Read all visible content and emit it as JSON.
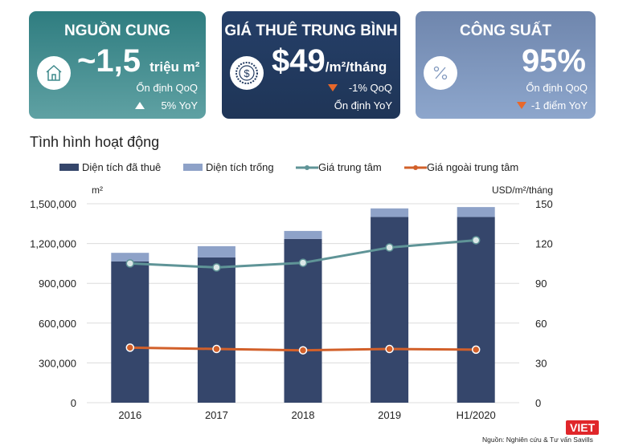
{
  "cards": [
    {
      "title": "NGUỒN CUNG",
      "value": "~1,5",
      "unit": "triệu m²",
      "line1": "Ổn định QoQ",
      "line2": "5% YoY",
      "icon": "house-icon",
      "color": "#3f8a8c"
    },
    {
      "title": "GIÁ THUÊ TRUNG BÌNH",
      "value": "$49",
      "unit": "/m²/tháng",
      "line1": "-1% QoQ",
      "line2": "Ổn định YoY",
      "icon": "dollar-coin-icon",
      "color": "#223a60"
    },
    {
      "title": "CÔNG SUẤT",
      "value": "95%",
      "line1": "Ổn định QoQ",
      "line2": "-1 điểm YoY",
      "icon": "percent-icon",
      "color": "#7f97bd"
    }
  ],
  "section_title": "Tình hình hoạt động",
  "chart_data": {
    "type": "bar",
    "categories": [
      "2016",
      "2017",
      "2018",
      "2019",
      "H1/2020"
    ],
    "series": [
      {
        "name": "Diện tích đã thuê",
        "kind": "stacked-bar",
        "axis": "left",
        "color": "#35466b",
        "values": [
          1065000,
          1095000,
          1235000,
          1400000,
          1400000
        ]
      },
      {
        "name": "Diện tích trống",
        "kind": "stacked-bar",
        "axis": "left",
        "color": "#8ea2c8",
        "values": [
          65000,
          85000,
          60000,
          65000,
          75000
        ]
      },
      {
        "name": "Giá trung tâm",
        "kind": "line",
        "axis": "right",
        "color": "#5f9497",
        "values": [
          105,
          102,
          105.5,
          117,
          122.5
        ]
      },
      {
        "name": "Giá ngoài trung tâm",
        "kind": "line",
        "axis": "right",
        "color": "#d2602a",
        "values": [
          41.5,
          40.5,
          39.5,
          40.5,
          40
        ]
      }
    ],
    "ylabel": "m²",
    "y2label": "USD/m²/tháng",
    "ylim": [
      0,
      1500000
    ],
    "y2lim": [
      0,
      150
    ],
    "yticks": [
      "0",
      "300,000",
      "600,000",
      "900,000",
      "1,200,000",
      "1,500,000"
    ],
    "y2ticks": [
      "0",
      "30",
      "60",
      "90",
      "120",
      "150"
    ],
    "grid": true,
    "legend": "top"
  },
  "source": "Nguồn: Nghiên cứu & Tư vấn Savills",
  "logo": "VIET"
}
